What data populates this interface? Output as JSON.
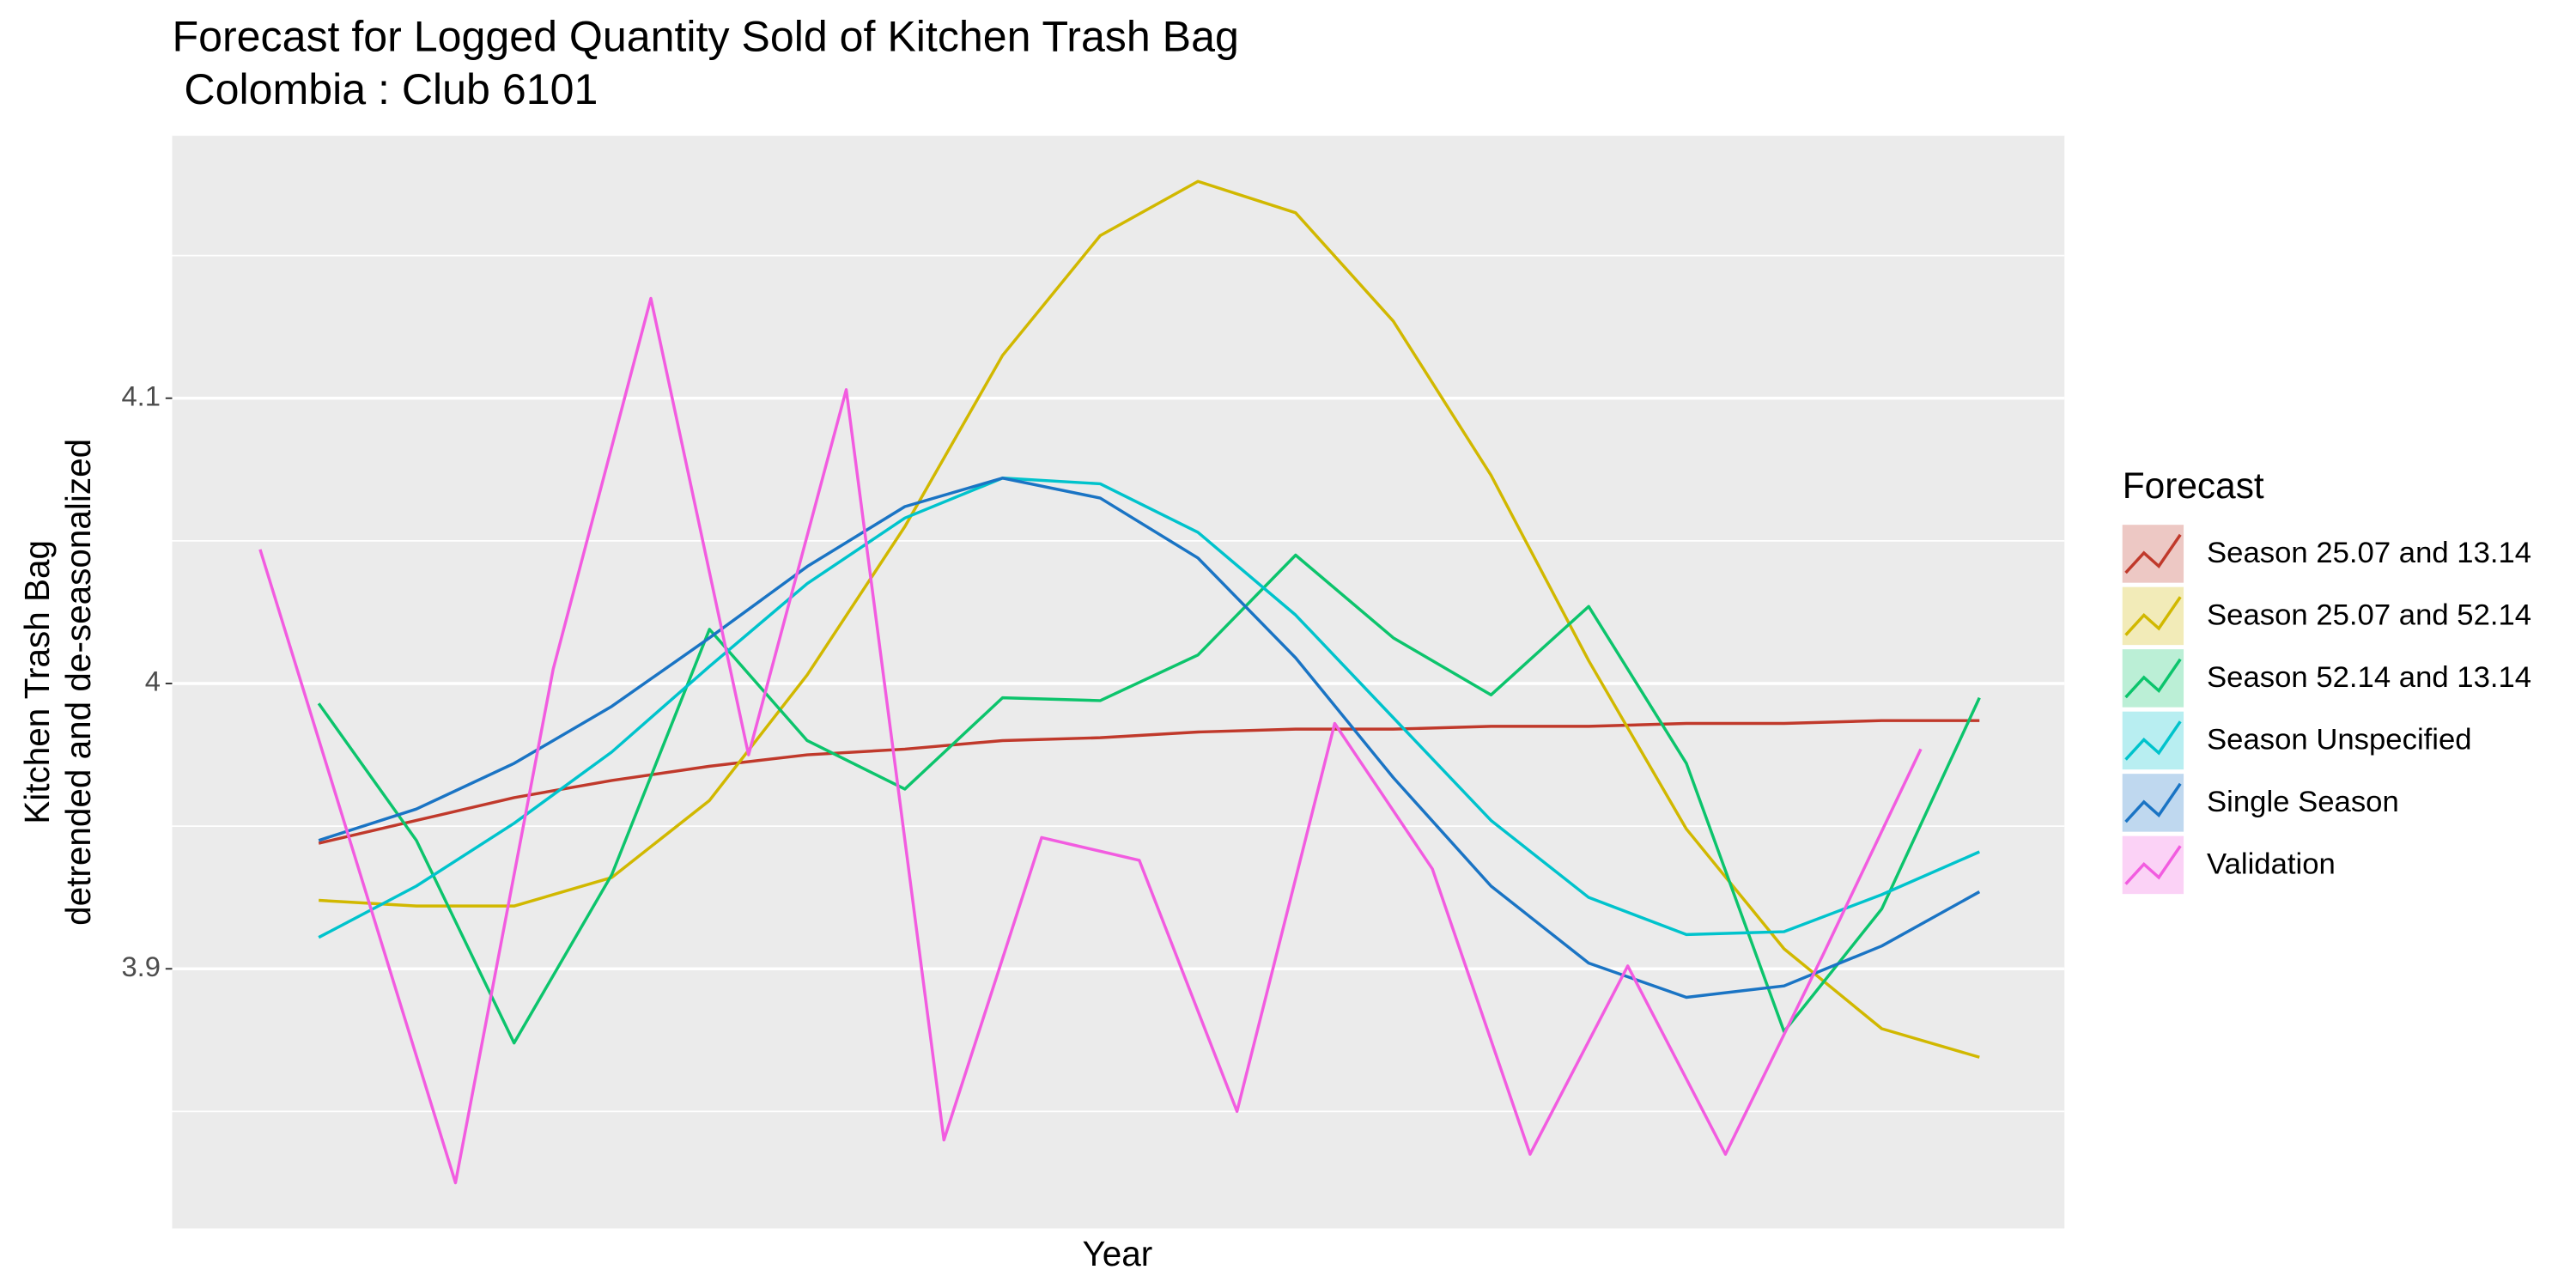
{
  "chart_data": {
    "type": "line",
    "title": [
      "Forecast for Logged Quantity Sold of Kitchen Trash Bag",
      " Colombia : Club 6101"
    ],
    "x_label": "Year",
    "y_label": [
      "Kitchen Trash Bag",
      "detrended and de-seasonalized"
    ],
    "legend_title": "Forecast",
    "legend": "right",
    "grid": true,
    "xlim": [
      -0.9,
      18.47
    ],
    "ylim": [
      3.809,
      4.192
    ],
    "yticks": [
      3.9,
      4.0,
      4.1
    ],
    "minor_yticks": [
      3.85,
      3.95,
      4.05,
      4.15
    ],
    "series": [
      {
        "name": "Season 25.07 and 13.14",
        "color": "#c0392b",
        "x": [
          0.6,
          1.6,
          2.6,
          3.6,
          4.6,
          5.6,
          6.6,
          7.6,
          8.6,
          9.6,
          10.6,
          11.6,
          12.6,
          13.6,
          14.6,
          15.6,
          16.6,
          17.6
        ],
        "values": [
          3.944,
          3.952,
          3.96,
          3.966,
          3.971,
          3.975,
          3.977,
          3.98,
          3.981,
          3.983,
          3.984,
          3.984,
          3.985,
          3.985,
          3.986,
          3.986,
          3.987,
          3.987
        ]
      },
      {
        "name": "Season 25.07 and 52.14",
        "color": "#d1b800",
        "x": [
          0.6,
          1.6,
          2.6,
          3.6,
          4.6,
          5.6,
          6.6,
          7.6,
          8.6,
          9.6,
          10.6,
          11.6,
          12.6,
          13.6,
          14.6,
          15.6,
          16.6,
          17.6
        ],
        "values": [
          3.924,
          3.922,
          3.922,
          3.932,
          3.959,
          4.003,
          4.055,
          4.115,
          4.157,
          4.176,
          4.165,
          4.127,
          4.073,
          4.008,
          3.949,
          3.907,
          3.879,
          3.869
        ]
      },
      {
        "name": "Season 52.14 and 13.14",
        "color": "#0cc46c",
        "x": [
          0.6,
          1.6,
          2.6,
          3.6,
          4.6,
          5.6,
          6.6,
          7.6,
          8.6,
          9.6,
          10.6,
          11.6,
          12.6,
          13.6,
          14.6,
          15.6,
          16.6,
          17.6
        ],
        "values": [
          3.993,
          3.945,
          3.874,
          3.933,
          4.019,
          3.98,
          3.963,
          3.995,
          3.994,
          4.01,
          4.045,
          4.016,
          3.996,
          4.027,
          3.972,
          3.878,
          3.921,
          3.995
        ]
      },
      {
        "name": "Season Unspecified",
        "color": "#00c3cc",
        "x": [
          0.6,
          1.6,
          2.6,
          3.6,
          4.6,
          5.6,
          6.6,
          7.6,
          8.6,
          9.6,
          10.6,
          11.6,
          12.6,
          13.6,
          14.6,
          15.6,
          16.6,
          17.6
        ],
        "values": [
          3.911,
          3.929,
          3.951,
          3.976,
          4.006,
          4.035,
          4.058,
          4.072,
          4.07,
          4.053,
          4.024,
          3.988,
          3.952,
          3.925,
          3.912,
          3.913,
          3.926,
          3.941
        ]
      },
      {
        "name": "Single Season",
        "color": "#1a74c4",
        "x": [
          0.6,
          1.6,
          2.6,
          3.6,
          4.6,
          5.6,
          6.6,
          7.6,
          8.6,
          9.6,
          10.6,
          11.6,
          12.6,
          13.6,
          14.6,
          15.6,
          16.6,
          17.6
        ],
        "values": [
          3.945,
          3.956,
          3.972,
          3.992,
          4.016,
          4.041,
          4.062,
          4.072,
          4.065,
          4.044,
          4.009,
          3.967,
          3.929,
          3.902,
          3.89,
          3.894,
          3.908,
          3.927
        ]
      },
      {
        "name": "Validation",
        "color": "#f25ce0",
        "x": [
          0,
          1,
          2,
          3,
          4,
          5,
          6,
          7,
          8,
          9,
          10,
          11,
          12,
          13,
          14,
          15,
          16,
          17
        ],
        "values": [
          4.047,
          3.936,
          3.825,
          4.005,
          4.135,
          3.975,
          4.103,
          3.84,
          3.946,
          3.938,
          3.85,
          3.986,
          3.935,
          3.835,
          3.901,
          3.835,
          3.905,
          3.977
        ]
      }
    ]
  }
}
